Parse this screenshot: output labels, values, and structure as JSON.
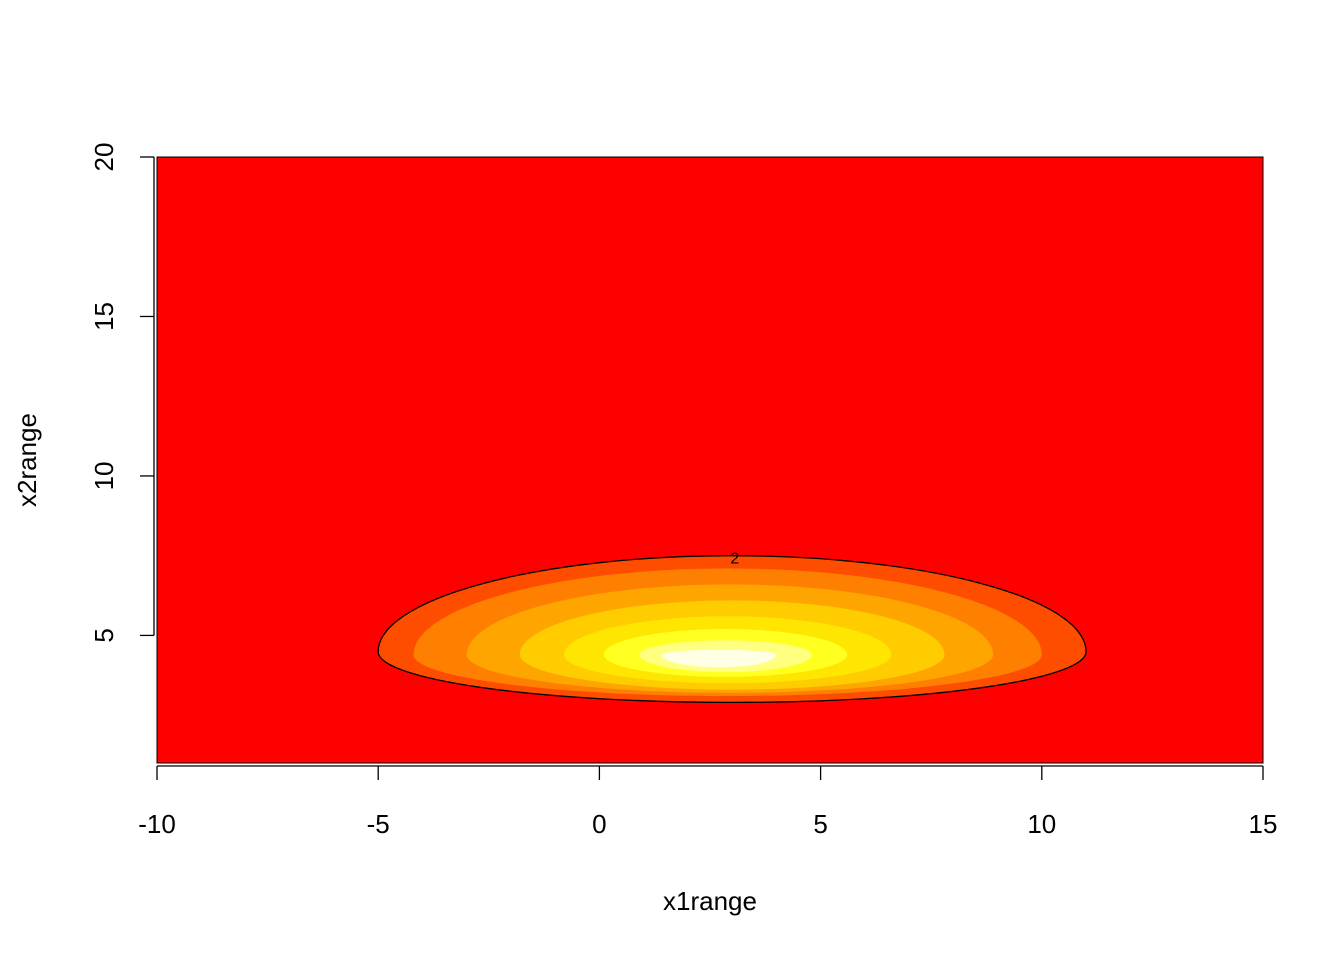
{
  "chart_data": {
    "type": "heatmap",
    "title": "",
    "xlabel": "x1range",
    "ylabel": "x2range",
    "xlim": [
      -10,
      15
    ],
    "ylim": [
      1,
      20
    ],
    "x_ticks": [
      "-10",
      "-5",
      "0",
      "5",
      "10",
      "15"
    ],
    "y_ticks": [
      "5",
      "10",
      "15",
      "20"
    ],
    "x_tick_values": [
      -10,
      -5,
      0,
      5,
      10,
      15
    ],
    "y_tick_values": [
      5,
      10,
      15,
      20
    ],
    "grid": false,
    "legend": "none",
    "background_color": "#ff0000",
    "level_colors": [
      "#ff0000",
      "#ff4d00",
      "#ff8000",
      "#ffa500",
      "#ffcc00",
      "#ffe600",
      "#ffff20",
      "#ffff80",
      "#ffffe6"
    ],
    "peak": {
      "x": 2.7,
      "y": 4.3
    },
    "contour_levels": [
      {
        "level": 2,
        "label": "2",
        "x_range": [
          -5,
          11
        ],
        "y_range": [
          2.9,
          7.5
        ]
      },
      {
        "level": 3,
        "label": "",
        "x_range": [
          -4.2,
          10.0
        ],
        "y_range": [
          3.1,
          7.1
        ]
      },
      {
        "level": 4,
        "label": "",
        "x_range": [
          -3.0,
          8.9
        ],
        "y_range": [
          3.2,
          6.6
        ]
      },
      {
        "level": 5,
        "label": "",
        "x_range": [
          -1.8,
          7.8
        ],
        "y_range": [
          3.3,
          6.1
        ]
      },
      {
        "level": 6,
        "label": "",
        "x_range": [
          -0.8,
          6.6
        ],
        "y_range": [
          3.5,
          5.6
        ]
      },
      {
        "level": 7,
        "label": "",
        "x_range": [
          0.1,
          5.6
        ],
        "y_range": [
          3.7,
          5.2
        ]
      },
      {
        "level": 8,
        "label": "",
        "x_range": [
          0.9,
          4.8
        ],
        "y_range": [
          3.85,
          4.85
        ]
      },
      {
        "level": 9,
        "label": "",
        "x_range": [
          1.4,
          4.0
        ],
        "y_range": [
          4.0,
          4.55
        ]
      }
    ]
  }
}
